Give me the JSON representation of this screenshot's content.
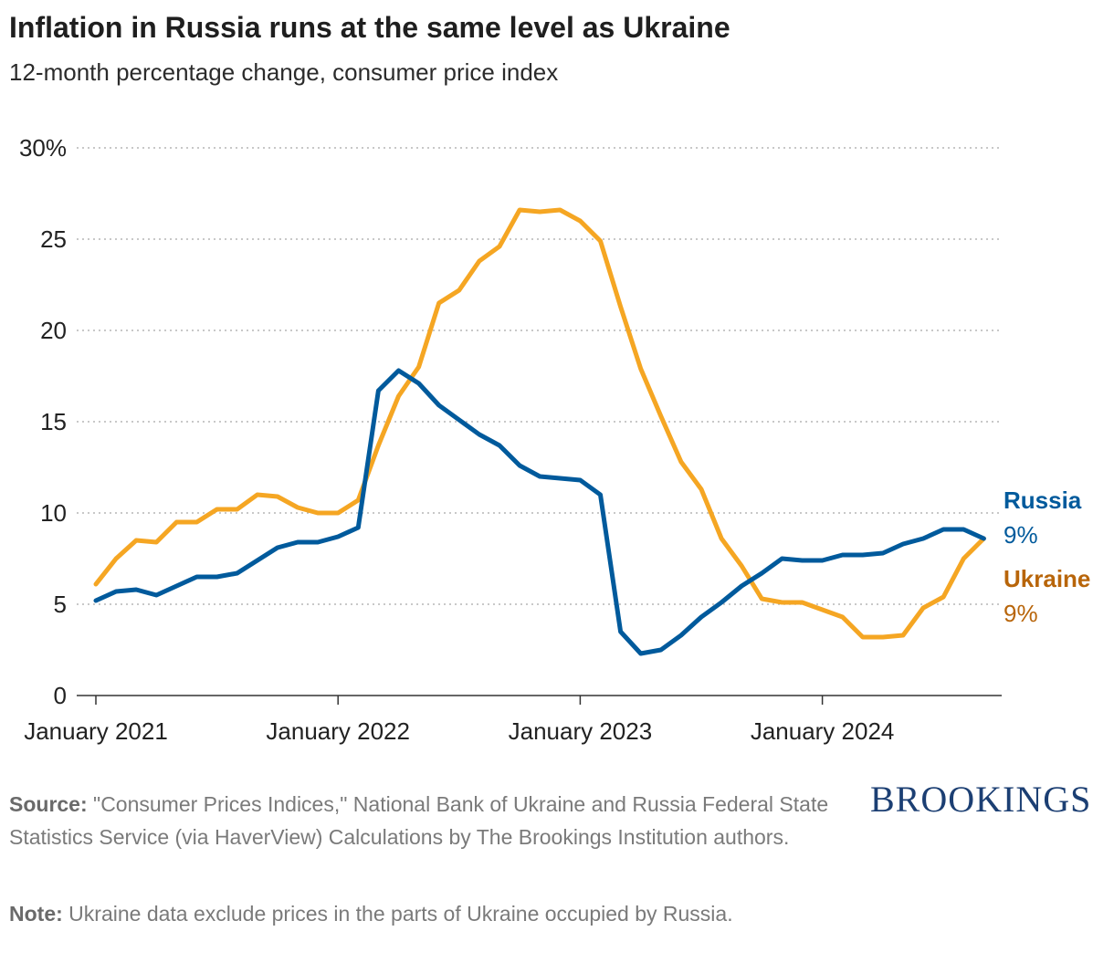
{
  "title": "Inflation in Russia runs at the same level as Ukraine",
  "subtitle": "12-month percentage change, consumer price index",
  "footer": {
    "source_label": "Source:",
    "source_text": " \"Consumer Prices Indices,\" National Bank of Ukraine and Russia Federal State Statistics Service (via HaverView) Calculations by The Brookings Institution authors.",
    "note_label": "Note:",
    "note_text": " Ukraine data exclude prices in the parts of Ukraine occupied by Russia."
  },
  "brand": "BROOKINGS",
  "chart_data": {
    "type": "line",
    "title": "Inflation in Russia runs at the same level as Ukraine",
    "subtitle": "12-month percentage change, consumer price index",
    "x_start": "2021-01",
    "x_labels": [
      {
        "label": "January 2021",
        "month_index": 0
      },
      {
        "label": "January 2022",
        "month_index": 12
      },
      {
        "label": "January 2023",
        "month_index": 24
      },
      {
        "label": "January 2024",
        "month_index": 36
      }
    ],
    "y_ticks": [
      {
        "value": 0,
        "label": "0"
      },
      {
        "value": 5,
        "label": "5"
      },
      {
        "value": 10,
        "label": "10"
      },
      {
        "value": 15,
        "label": "15"
      },
      {
        "value": 20,
        "label": "20"
      },
      {
        "value": 25,
        "label": "25"
      },
      {
        "value": 30,
        "label": "30%"
      }
    ],
    "ylim": [
      0,
      30
    ],
    "grid": "horizontal dotted",
    "series": [
      {
        "name": "Ukraine",
        "end_label": "9%",
        "color": "#f5a623",
        "label_color": "#b8650a",
        "values": [
          6.1,
          7.5,
          8.5,
          8.4,
          9.5,
          9.5,
          10.2,
          10.2,
          11.0,
          10.9,
          10.3,
          10.0,
          10.0,
          10.7,
          13.7,
          16.4,
          18.0,
          21.5,
          22.2,
          23.8,
          24.6,
          26.6,
          26.5,
          26.6,
          26.0,
          24.9,
          21.3,
          17.9,
          15.3,
          12.8,
          11.3,
          8.6,
          7.1,
          5.3,
          5.1,
          5.1,
          4.7,
          4.3,
          3.2,
          3.2,
          3.3,
          4.8,
          5.4,
          7.5,
          8.6
        ]
      },
      {
        "name": "Russia",
        "end_label": "9%",
        "color": "#005a9c",
        "label_color": "#005a9c",
        "values": [
          5.2,
          5.7,
          5.8,
          5.5,
          6.0,
          6.5,
          6.5,
          6.7,
          7.4,
          8.1,
          8.4,
          8.4,
          8.7,
          9.2,
          16.7,
          17.8,
          17.1,
          15.9,
          15.1,
          14.3,
          13.7,
          12.6,
          12.0,
          11.9,
          11.8,
          11.0,
          3.5,
          2.3,
          2.5,
          3.3,
          4.3,
          5.1,
          6.0,
          6.7,
          7.5,
          7.4,
          7.4,
          7.7,
          7.7,
          7.8,
          8.3,
          8.6,
          9.1,
          9.1,
          8.6
        ]
      }
    ]
  }
}
